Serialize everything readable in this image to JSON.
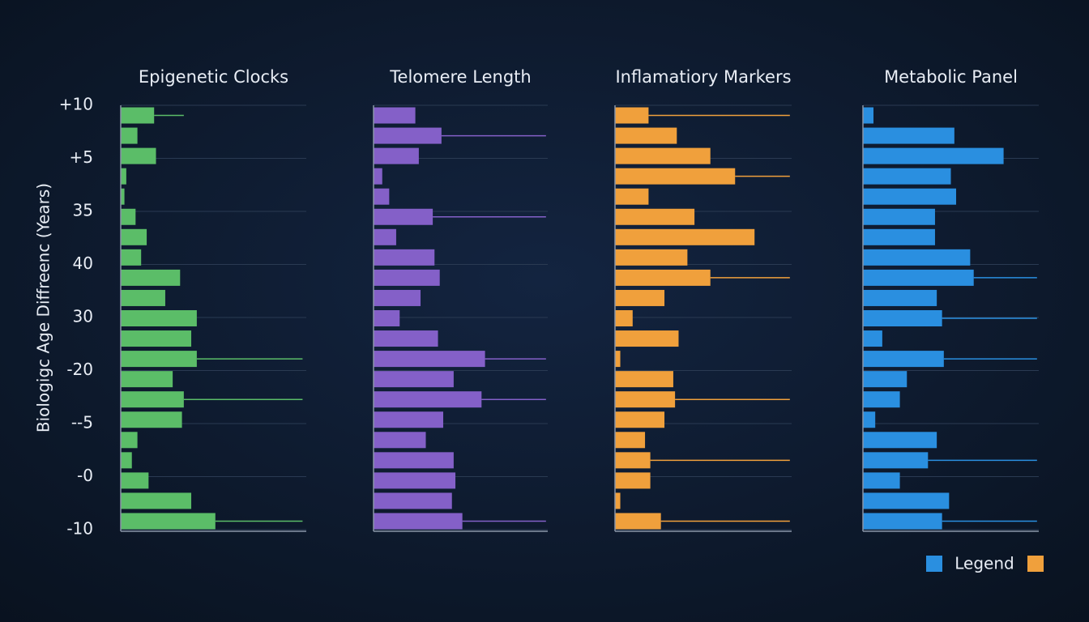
{
  "chart_data": [
    {
      "type": "hbar",
      "title": "Epigenetic Clocks",
      "color": "#5bbd68",
      "xlim": [
        0,
        100
      ],
      "y_axis_label": "Biologigc Age Diffreenc (Years)",
      "row_labels": [
        "+10",
        "+5",
        "35",
        "40",
        "30",
        "-20",
        "--5",
        "-0",
        "-10"
      ],
      "values": [
        18,
        9,
        19,
        3,
        2,
        8,
        14,
        11,
        32,
        24,
        41,
        38,
        41,
        28,
        34,
        33,
        9,
        6,
        15,
        38,
        51
      ],
      "whisker_ends": [
        34,
        null,
        null,
        null,
        null,
        null,
        null,
        null,
        null,
        null,
        null,
        null,
        98,
        null,
        98,
        null,
        null,
        null,
        null,
        null,
        98
      ]
    },
    {
      "type": "hbar",
      "title": "Telomere Length",
      "color": "#8460c8",
      "xlim": [
        0,
        100
      ],
      "values": [
        24,
        39,
        26,
        5,
        9,
        34,
        13,
        35,
        38,
        27,
        15,
        37,
        64,
        46,
        62,
        40,
        30,
        46,
        47,
        45,
        51
      ],
      "whisker_ends": [
        null,
        99,
        null,
        null,
        null,
        99,
        null,
        null,
        null,
        null,
        null,
        null,
        99,
        null,
        99,
        null,
        null,
        null,
        null,
        null,
        99
      ]
    },
    {
      "type": "hbar",
      "title": "Inflamatiory Markers",
      "color": "#f0a03c",
      "xlim": [
        0,
        100
      ],
      "values": [
        19,
        35,
        54,
        68,
        19,
        45,
        79,
        41,
        54,
        28,
        10,
        36,
        3,
        33,
        34,
        28,
        17,
        20,
        20,
        3,
        26
      ],
      "whisker_ends": [
        99,
        null,
        null,
        99,
        null,
        null,
        null,
        null,
        99,
        null,
        null,
        null,
        null,
        null,
        99,
        null,
        null,
        99,
        null,
        null,
        99
      ]
    },
    {
      "type": "hbar",
      "title": "Metabolic Panel",
      "color": "#2a8fe0",
      "xlim": [
        0,
        100
      ],
      "values": [
        6,
        52,
        80,
        50,
        53,
        41,
        41,
        61,
        63,
        42,
        45,
        11,
        46,
        25,
        21,
        7,
        42,
        37,
        21,
        49,
        45
      ],
      "whisker_ends": [
        null,
        null,
        null,
        null,
        null,
        null,
        null,
        null,
        99,
        null,
        99,
        null,
        99,
        null,
        null,
        null,
        null,
        99,
        null,
        null,
        99
      ]
    }
  ],
  "legend": {
    "label": "Legend",
    "colors": [
      "#2a8fe0",
      "#f0a03c"
    ]
  }
}
